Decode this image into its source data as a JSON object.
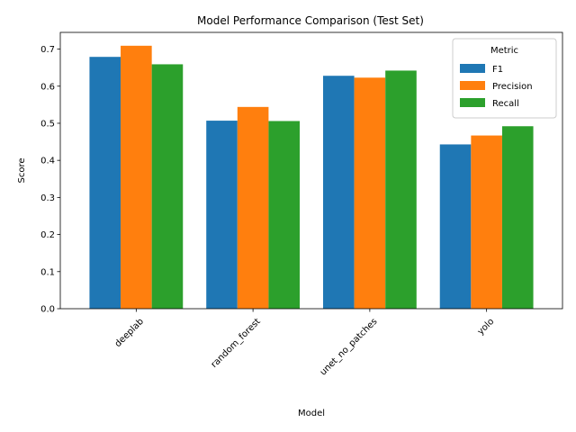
{
  "chart_data": {
    "type": "bar",
    "title": "Model Performance Comparison (Test Set)",
    "xlabel": "Model",
    "ylabel": "Score",
    "categories": [
      "deeplab",
      "random_forest",
      "unet_no_patches",
      "yolo"
    ],
    "series": [
      {
        "name": "F1",
        "color": "#1f77b4",
        "values": [
          0.679,
          0.507,
          0.628,
          0.443
        ]
      },
      {
        "name": "Precision",
        "color": "#ff7f0e",
        "values": [
          0.709,
          0.544,
          0.623,
          0.467
        ]
      },
      {
        "name": "Recall",
        "color": "#2ca02c",
        "values": [
          0.659,
          0.506,
          0.642,
          0.492
        ]
      }
    ],
    "ylim": [
      0,
      0.745
    ],
    "yticks": [
      0.0,
      0.1,
      0.2,
      0.3,
      0.4,
      0.5,
      0.6,
      0.7
    ],
    "ytick_labels": [
      "0.0",
      "0.1",
      "0.2",
      "0.3",
      "0.4",
      "0.5",
      "0.6",
      "0.7"
    ],
    "grid": false,
    "legend": {
      "title": "Metric",
      "placement": "top-right"
    }
  }
}
